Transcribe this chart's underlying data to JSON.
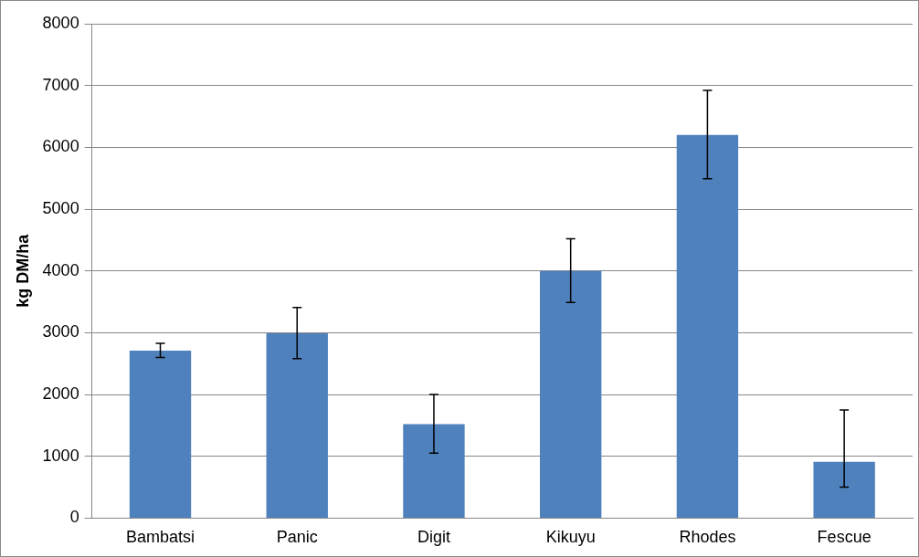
{
  "chart_data": {
    "type": "bar",
    "ylabel": "kg DM/ha",
    "categories": [
      "Bambatsi",
      "Panic",
      "Digit",
      "Kikuyu",
      "Rhodes",
      "Fescue"
    ],
    "values": [
      2710,
      2990,
      1520,
      4000,
      6200,
      910
    ],
    "errors": [
      [
        2600,
        2830
      ],
      [
        2580,
        3410
      ],
      [
        1050,
        2000
      ],
      [
        3490,
        4520
      ],
      [
        5490,
        6920
      ],
      [
        500,
        1750
      ]
    ],
    "color": "#4f81bd",
    "ylim": [
      0,
      8000
    ],
    "yticks": [
      0,
      1000,
      2000,
      3000,
      4000,
      5000,
      6000,
      7000,
      8000
    ],
    "grid": "y",
    "legend": false
  }
}
